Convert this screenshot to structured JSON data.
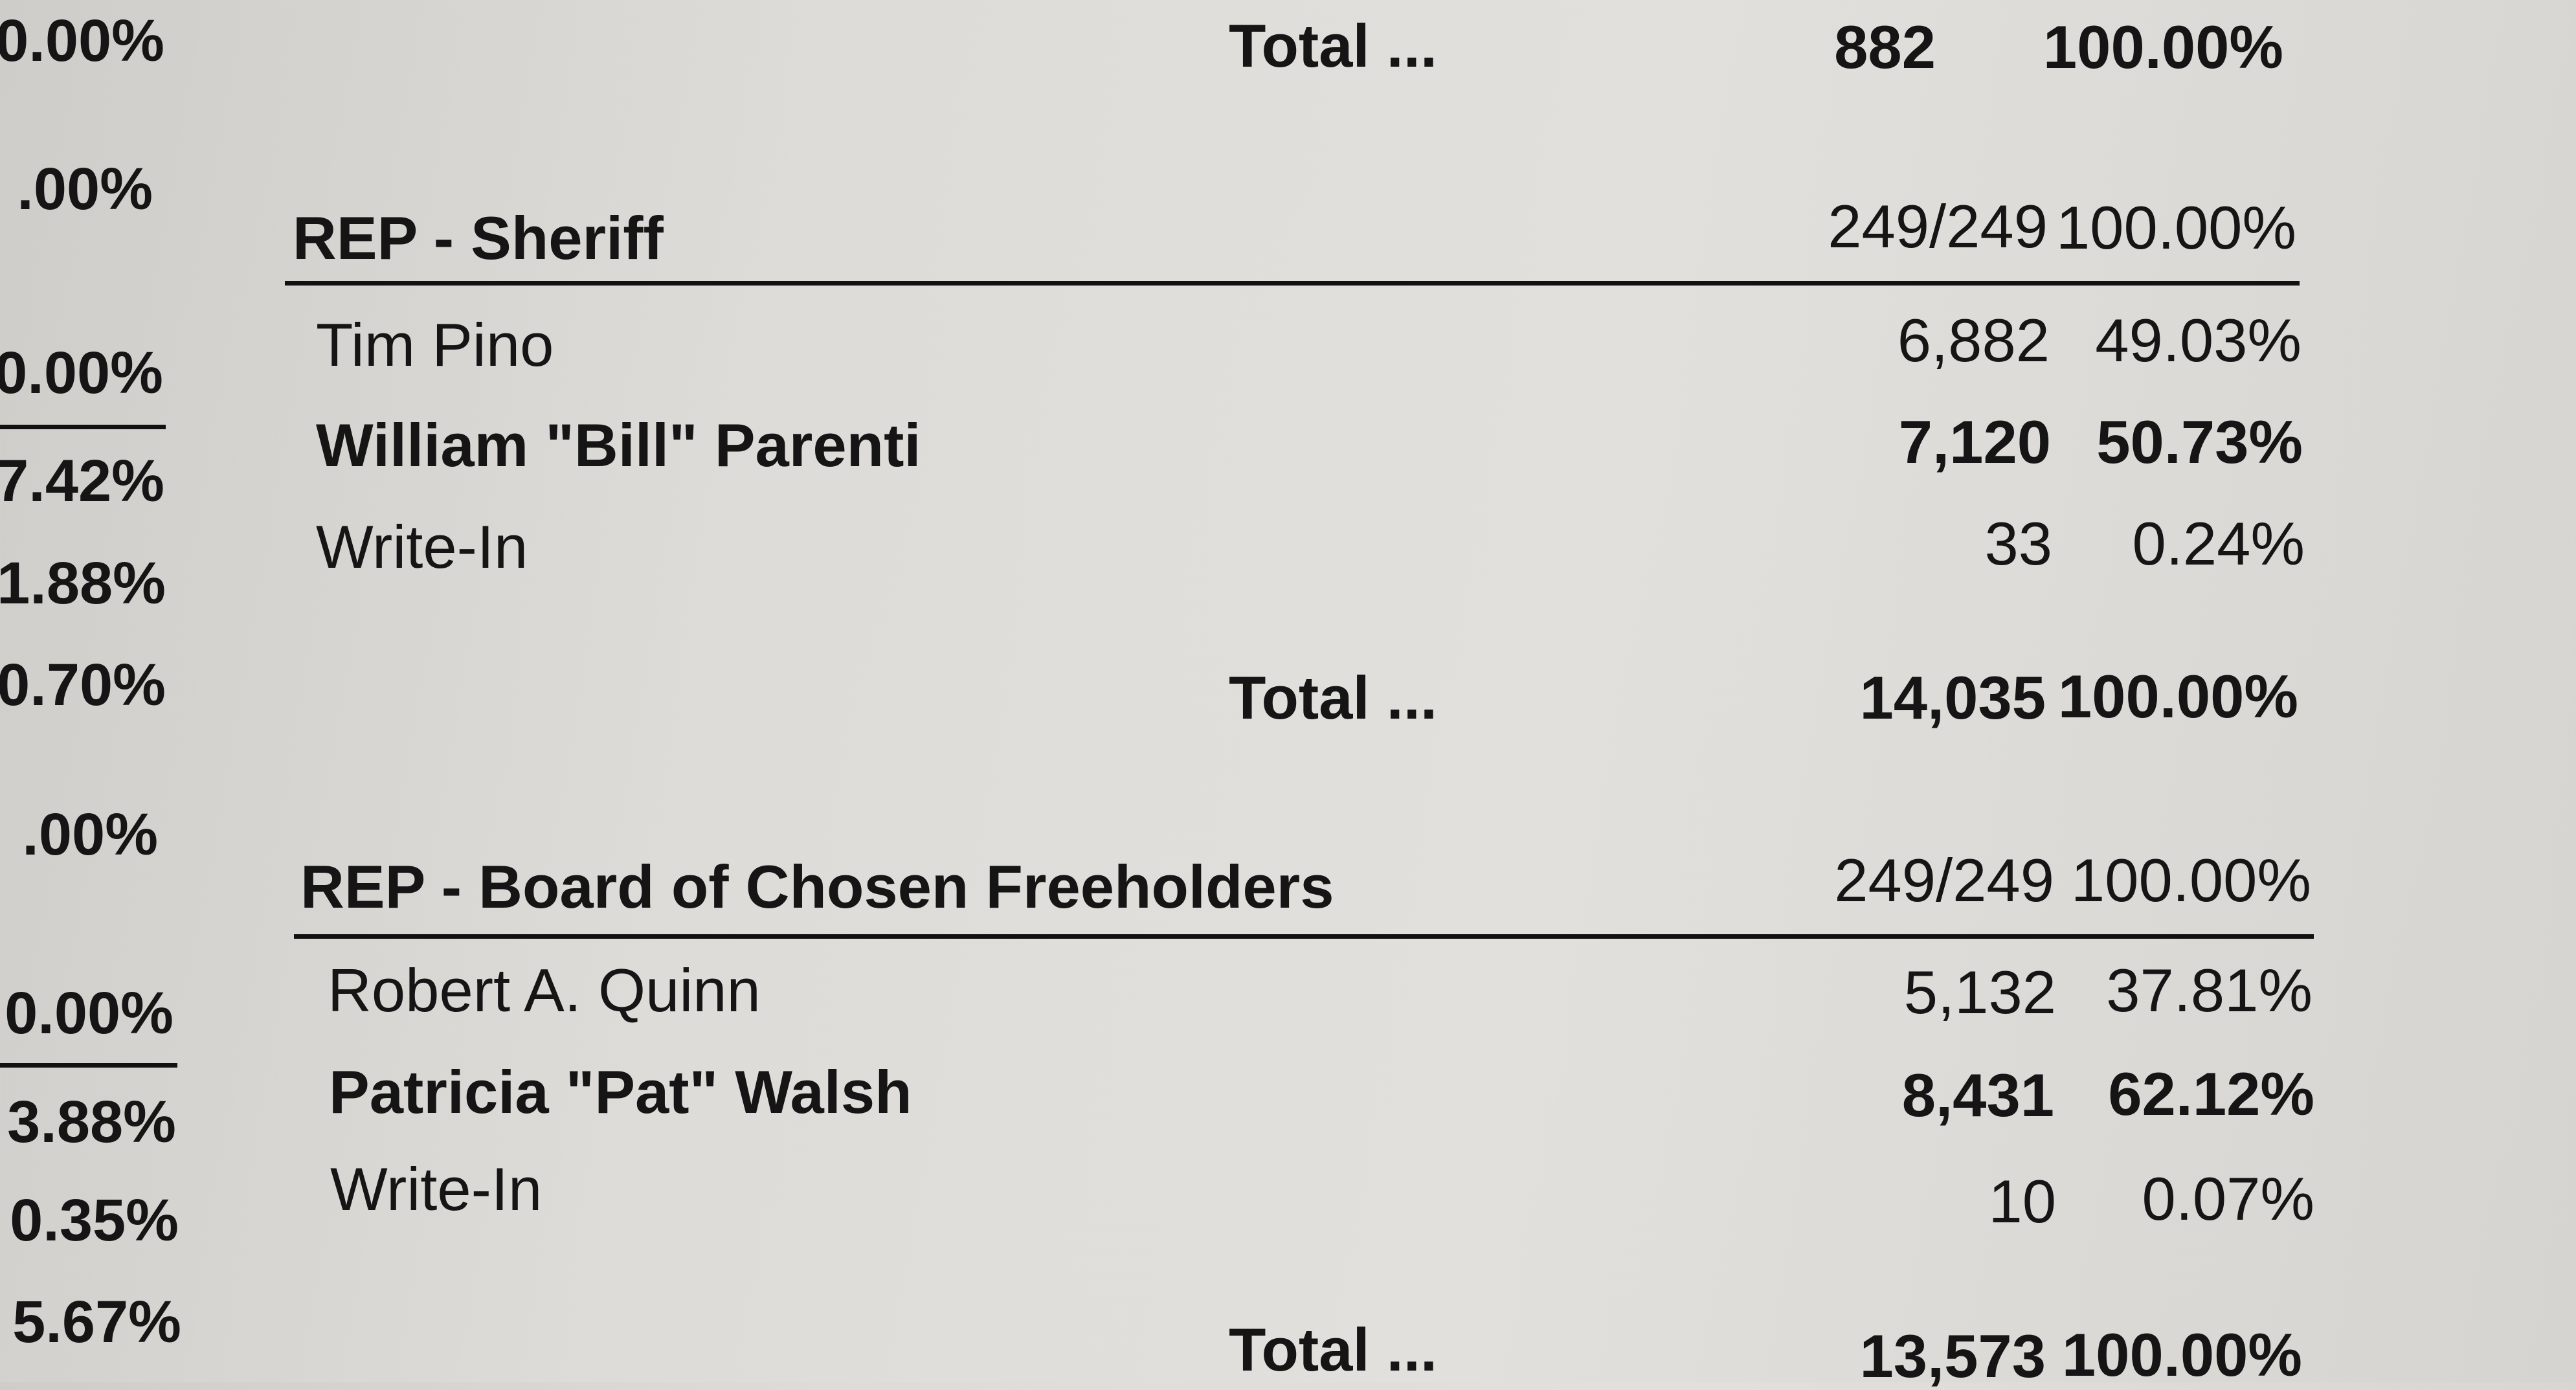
{
  "left_column": [
    "0.00%",
    ".00%",
    "0.00%",
    "7.42%",
    "1.88%",
    "0.70%",
    ".00%",
    "0.00%",
    "3.88%",
    "0.35%",
    "5.67%"
  ],
  "previous_total": {
    "label": "Total ...",
    "votes": "882",
    "percent": "100.00%"
  },
  "contests": [
    {
      "title": "REP - Sheriff",
      "precincts": "249/249",
      "precincts_percent": "100.00%",
      "candidates": [
        {
          "name": "Tim Pino",
          "votes": "6,882",
          "percent": "49.03%"
        },
        {
          "name": "William \"Bill\" Parenti",
          "votes": "7,120",
          "percent": "50.73%"
        },
        {
          "name": "Write-In",
          "votes": "33",
          "percent": "0.24%"
        }
      ],
      "total": {
        "label": "Total ...",
        "votes": "14,035",
        "percent": "100.00%"
      }
    },
    {
      "title": "REP - Board of Chosen Freeholders",
      "precincts": "249/249",
      "precincts_percent": "100.00%",
      "candidates": [
        {
          "name": "Robert A. Quinn",
          "votes": "5,132",
          "percent": "37.81%"
        },
        {
          "name": "Patricia \"Pat\" Walsh",
          "votes": "8,431",
          "percent": "62.12%"
        },
        {
          "name": "Write-In",
          "votes": "10",
          "percent": "0.07%"
        }
      ],
      "total": {
        "label": "Total ...",
        "votes": "13,573",
        "percent": "100.00%"
      }
    }
  ]
}
